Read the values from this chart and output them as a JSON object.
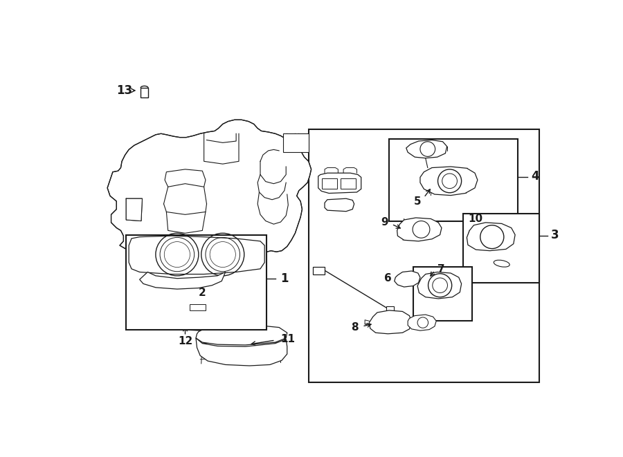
{
  "bg_color": "#ffffff",
  "line_color": "#1a1a1a",
  "fig_width": 9.0,
  "fig_height": 6.61,
  "dpi": 100,
  "xlim": [
    0,
    900
  ],
  "ylim": [
    0,
    661
  ]
}
